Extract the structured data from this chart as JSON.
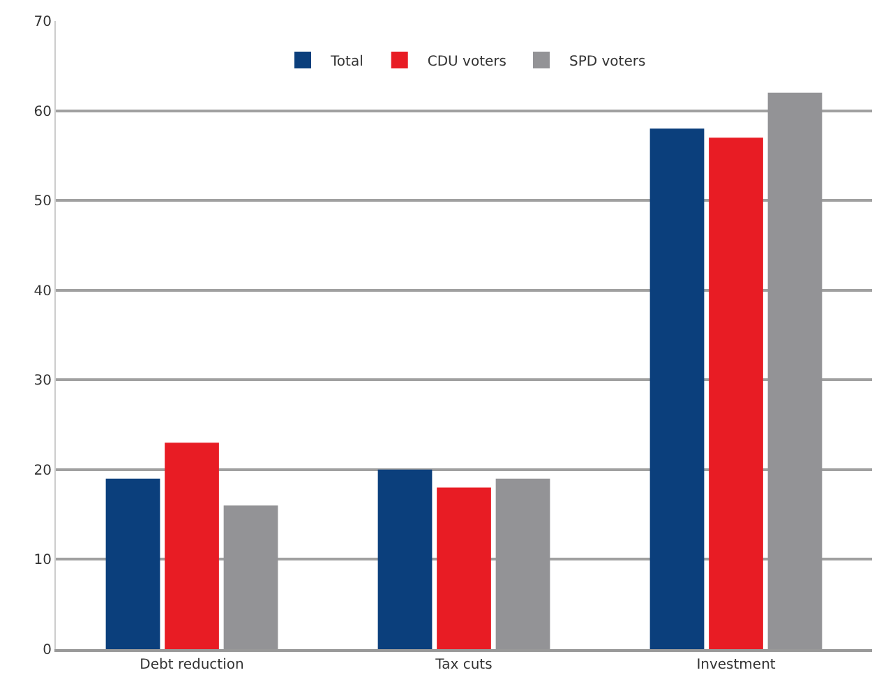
{
  "chart_data": {
    "type": "bar",
    "categories": [
      "Debt reduction",
      "Tax cuts",
      "Investment"
    ],
    "series": [
      {
        "name": "Total",
        "color": "#0b3f7c",
        "values": [
          19,
          20,
          58
        ]
      },
      {
        "name": "CDU voters",
        "color": "#e81c24",
        "values": [
          23,
          18,
          57
        ]
      },
      {
        "name": "SPD voters",
        "color": "#939396",
        "values": [
          16,
          19,
          62
        ]
      }
    ],
    "ylim": [
      0,
      70
    ],
    "yticks": [
      0,
      10,
      20,
      30,
      40,
      50,
      60,
      70
    ],
    "grid": "y",
    "legend": "top"
  }
}
